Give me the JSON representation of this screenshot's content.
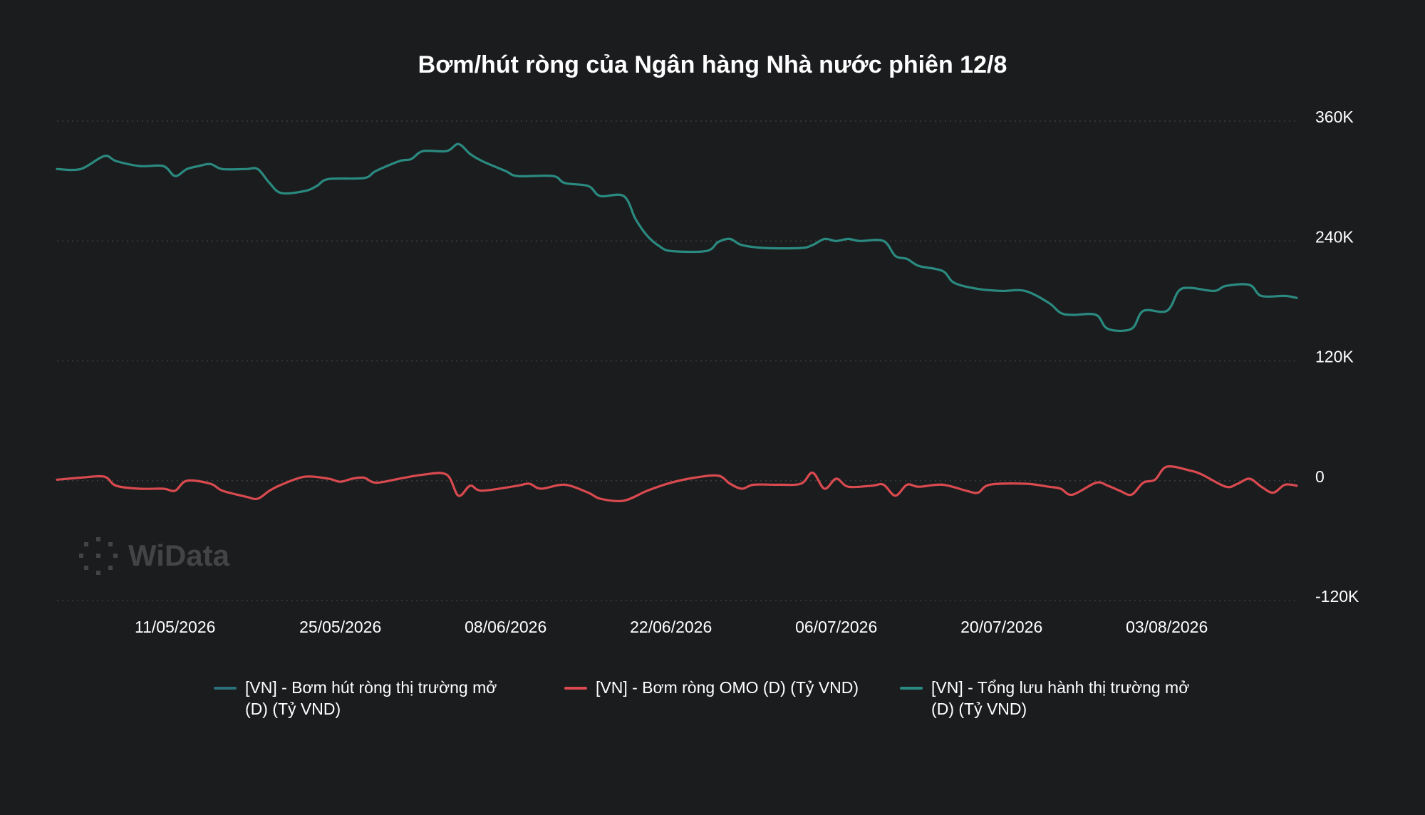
{
  "title": "Bơm/hút ròng của Ngân hàng Nhà nước phiên 12/8",
  "watermark": "WiData",
  "legend": [
    {
      "label": "[VN] - Bơm hút ròng thị trường mở (D) (Tỷ VND)",
      "color": "#2a6f7a"
    },
    {
      "label": "[VN] - Bơm ròng OMO (D) (Tỷ VND)",
      "color": "#d94a4f"
    },
    {
      "label": "[VN] - Tổng lưu hành thị trường mở (D) (Tỷ VND)",
      "color": "#2a8a80"
    }
  ],
  "chart_data": {
    "type": "line",
    "title": "Bơm/hút ròng của Ngân hàng Nhà nước phiên 12/8",
    "x_range": [
      "2026-05-01",
      "2026-08-14"
    ],
    "x_ticks": [
      "11/05/2026",
      "25/05/2026",
      "08/06/2026",
      "22/06/2026",
      "06/07/2026",
      "20/07/2026",
      "03/08/2026"
    ],
    "y_ticks": [
      "360K",
      "240K",
      "120K",
      "0",
      "-120K"
    ],
    "ylim": [
      -120000,
      360000
    ],
    "y_axis_position": "right",
    "grid": "horizontal-dotted",
    "legend_position": "bottom",
    "series": [
      {
        "name": "[VN] - Tổng lưu hành thị trường mở (D) (Tỷ VND)",
        "color": "#2a8a80",
        "points": [
          [
            "2026-05-01",
            312000
          ],
          [
            "2026-05-03",
            312000
          ],
          [
            "2026-05-05",
            325000
          ],
          [
            "2026-05-06",
            320000
          ],
          [
            "2026-05-08",
            315000
          ],
          [
            "2026-05-10",
            315000
          ],
          [
            "2026-05-11",
            305000
          ],
          [
            "2026-05-12",
            312000
          ],
          [
            "2026-05-13",
            315000
          ],
          [
            "2026-05-14",
            317000
          ],
          [
            "2026-05-15",
            312000
          ],
          [
            "2026-05-17",
            312000
          ],
          [
            "2026-05-18",
            312000
          ],
          [
            "2026-05-19",
            298000
          ],
          [
            "2026-05-20",
            288000
          ],
          [
            "2026-05-22",
            290000
          ],
          [
            "2026-05-23",
            295000
          ],
          [
            "2026-05-24",
            302000
          ],
          [
            "2026-05-27",
            303000
          ],
          [
            "2026-05-28",
            310000
          ],
          [
            "2026-05-30",
            320000
          ],
          [
            "2026-05-31",
            322000
          ],
          [
            "2026-06-01",
            330000
          ],
          [
            "2026-06-03",
            330000
          ],
          [
            "2026-06-04",
            337000
          ],
          [
            "2026-06-05",
            327000
          ],
          [
            "2026-06-06",
            320000
          ],
          [
            "2026-06-08",
            310000
          ],
          [
            "2026-06-09",
            305000
          ],
          [
            "2026-06-12",
            305000
          ],
          [
            "2026-06-13",
            298000
          ],
          [
            "2026-06-15",
            295000
          ],
          [
            "2026-06-16",
            285000
          ],
          [
            "2026-06-18",
            285000
          ],
          [
            "2026-06-19",
            262000
          ],
          [
            "2026-06-20",
            245000
          ],
          [
            "2026-06-21",
            235000
          ],
          [
            "2026-06-22",
            230000
          ],
          [
            "2026-06-25",
            230000
          ],
          [
            "2026-06-26",
            239000
          ],
          [
            "2026-06-27",
            242000
          ],
          [
            "2026-06-28",
            236000
          ],
          [
            "2026-06-30",
            233000
          ],
          [
            "2026-07-03",
            233000
          ],
          [
            "2026-07-04",
            236000
          ],
          [
            "2026-07-05",
            242000
          ],
          [
            "2026-07-06",
            240000
          ],
          [
            "2026-07-07",
            242000
          ],
          [
            "2026-07-08",
            240000
          ],
          [
            "2026-07-10",
            240000
          ],
          [
            "2026-07-11",
            225000
          ],
          [
            "2026-07-12",
            222000
          ],
          [
            "2026-07-13",
            215000
          ],
          [
            "2026-07-15",
            210000
          ],
          [
            "2026-07-16",
            198000
          ],
          [
            "2026-07-18",
            192000
          ],
          [
            "2026-07-20",
            190000
          ],
          [
            "2026-07-22",
            190000
          ],
          [
            "2026-07-24",
            178000
          ],
          [
            "2026-07-25",
            168000
          ],
          [
            "2026-07-26",
            166000
          ],
          [
            "2026-07-28",
            166000
          ],
          [
            "2026-07-29",
            152000
          ],
          [
            "2026-07-31",
            152000
          ],
          [
            "2026-08-01",
            170000
          ],
          [
            "2026-08-03",
            170000
          ],
          [
            "2026-08-04",
            190000
          ],
          [
            "2026-08-05",
            193000
          ],
          [
            "2026-08-07",
            190000
          ],
          [
            "2026-08-08",
            195000
          ],
          [
            "2026-08-10",
            196000
          ],
          [
            "2026-08-11",
            185000
          ],
          [
            "2026-08-13",
            185000
          ],
          [
            "2026-08-14",
            183000
          ]
        ]
      },
      {
        "name": "[VN] - Bơm ròng OMO (D) (Tỷ VND)",
        "color": "#d94a4f",
        "points": [
          [
            "2026-05-01",
            1000
          ],
          [
            "2026-05-03",
            3000
          ],
          [
            "2026-05-05",
            4000
          ],
          [
            "2026-05-06",
            -5000
          ],
          [
            "2026-05-08",
            -8000
          ],
          [
            "2026-05-10",
            -8000
          ],
          [
            "2026-05-11",
            -10000
          ],
          [
            "2026-05-12",
            0
          ],
          [
            "2026-05-14",
            -3000
          ],
          [
            "2026-05-15",
            -10000
          ],
          [
            "2026-05-17",
            -16000
          ],
          [
            "2026-05-18",
            -18000
          ],
          [
            "2026-05-19",
            -10000
          ],
          [
            "2026-05-20",
            -4000
          ],
          [
            "2026-05-22",
            4000
          ],
          [
            "2026-05-24",
            2000
          ],
          [
            "2026-05-25",
            -1000
          ],
          [
            "2026-05-26",
            2000
          ],
          [
            "2026-05-27",
            3000
          ],
          [
            "2026-05-28",
            -2000
          ],
          [
            "2026-05-30",
            2000
          ],
          [
            "2026-06-01",
            6000
          ],
          [
            "2026-06-03",
            6000
          ],
          [
            "2026-06-04",
            -15000
          ],
          [
            "2026-06-05",
            -5000
          ],
          [
            "2026-06-06",
            -10000
          ],
          [
            "2026-06-09",
            -5000
          ],
          [
            "2026-06-10",
            -3000
          ],
          [
            "2026-06-11",
            -8000
          ],
          [
            "2026-06-13",
            -4000
          ],
          [
            "2026-06-15",
            -12000
          ],
          [
            "2026-06-16",
            -18000
          ],
          [
            "2026-06-18",
            -20000
          ],
          [
            "2026-06-20",
            -10000
          ],
          [
            "2026-06-22",
            -2000
          ],
          [
            "2026-06-24",
            3000
          ],
          [
            "2026-06-26",
            5000
          ],
          [
            "2026-06-27",
            -3000
          ],
          [
            "2026-06-28",
            -8000
          ],
          [
            "2026-06-29",
            -4000
          ],
          [
            "2026-07-01",
            -4000
          ],
          [
            "2026-07-03",
            -3000
          ],
          [
            "2026-07-04",
            8000
          ],
          [
            "2026-07-05",
            -8000
          ],
          [
            "2026-07-06",
            2000
          ],
          [
            "2026-07-07",
            -6000
          ],
          [
            "2026-07-09",
            -5000
          ],
          [
            "2026-07-10",
            -4000
          ],
          [
            "2026-07-11",
            -15000
          ],
          [
            "2026-07-12",
            -4000
          ],
          [
            "2026-07-13",
            -6000
          ],
          [
            "2026-07-15",
            -4000
          ],
          [
            "2026-07-17",
            -10000
          ],
          [
            "2026-07-18",
            -12000
          ],
          [
            "2026-07-19",
            -4000
          ],
          [
            "2026-07-22",
            -3000
          ],
          [
            "2026-07-24",
            -6000
          ],
          [
            "2026-07-25",
            -8000
          ],
          [
            "2026-07-26",
            -14000
          ],
          [
            "2026-07-28",
            -2000
          ],
          [
            "2026-07-29",
            -5000
          ],
          [
            "2026-07-30",
            -10000
          ],
          [
            "2026-07-31",
            -14000
          ],
          [
            "2026-08-01",
            -2000
          ],
          [
            "2026-08-02",
            1000
          ],
          [
            "2026-08-03",
            14000
          ],
          [
            "2026-08-05",
            10000
          ],
          [
            "2026-08-06",
            6000
          ],
          [
            "2026-08-08",
            -6000
          ],
          [
            "2026-08-09",
            -3000
          ],
          [
            "2026-08-10",
            2000
          ],
          [
            "2026-08-11",
            -6000
          ],
          [
            "2026-08-12",
            -12000
          ],
          [
            "2026-08-13",
            -4000
          ],
          [
            "2026-08-14",
            -5000
          ]
        ]
      }
    ]
  }
}
